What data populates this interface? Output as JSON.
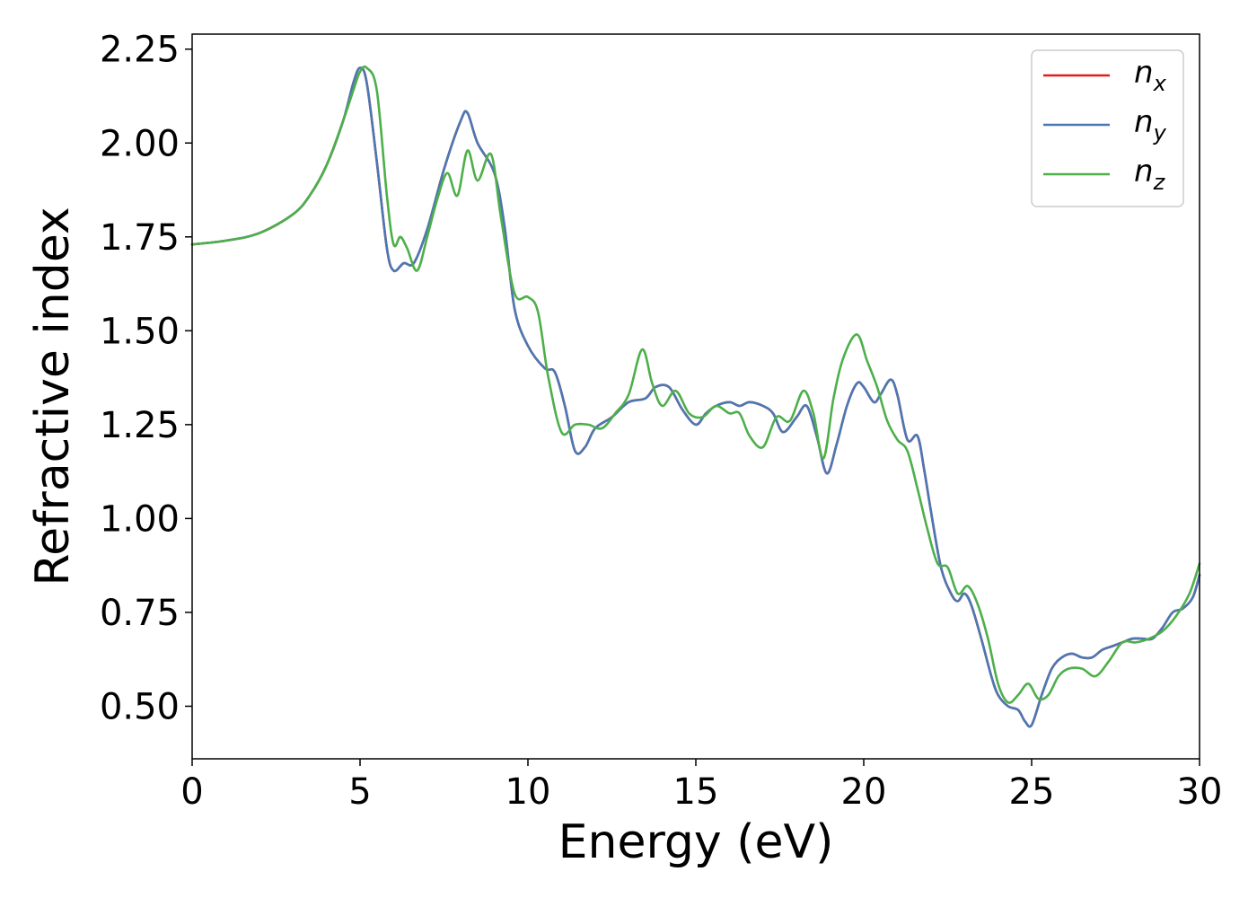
{
  "chart_data": {
    "type": "line",
    "xlabel": "Energy (eV)",
    "ylabel": "Refractive index",
    "xlim": [
      0,
      30
    ],
    "ylim": [
      0.36,
      2.29
    ],
    "xticks": [
      0,
      5,
      10,
      15,
      20,
      25,
      30
    ],
    "xtick_labels": [
      "0",
      "5",
      "10",
      "15",
      "20",
      "25",
      "30"
    ],
    "yticks": [
      0.5,
      0.75,
      1.0,
      1.25,
      1.5,
      1.75,
      2.0,
      2.25
    ],
    "ytick_labels": [
      "0.50",
      "0.75",
      "1.00",
      "1.25",
      "1.50",
      "1.75",
      "2.00",
      "2.25"
    ],
    "grid": false,
    "legend_position": "top-right",
    "series": [
      {
        "name": "n",
        "subscript": "x",
        "color": "#e41a1c",
        "x": [
          0,
          1,
          2,
          3,
          3.5,
          4,
          4.5,
          4.8,
          5.0,
          5.2,
          5.5,
          5.8,
          6.0,
          6.3,
          6.6,
          7.0,
          7.5,
          8.0,
          8.2,
          8.5,
          9.0,
          9.3,
          9.6,
          10.0,
          10.5,
          10.8,
          11.1,
          11.4,
          11.7,
          12.0,
          12.5,
          13.0,
          13.5,
          13.8,
          14.2,
          14.6,
          15.0,
          15.3,
          15.6,
          16.0,
          16.3,
          16.6,
          17.0,
          17.3,
          17.6,
          18.0,
          18.3,
          18.6,
          18.9,
          19.2,
          19.5,
          19.8,
          20.0,
          20.3,
          20.5,
          20.8,
          21.0,
          21.3,
          21.6,
          21.8,
          22.0,
          22.3,
          22.6,
          22.8,
          23.0,
          23.2,
          23.5,
          23.8,
          24.0,
          24.3,
          24.6,
          24.8,
          25.0,
          25.3,
          25.6,
          25.9,
          26.2,
          26.5,
          26.8,
          27.1,
          27.4,
          27.7,
          28.0,
          28.3,
          28.6,
          28.9,
          29.2,
          29.5,
          29.8,
          30
        ],
        "y": [
          1.73,
          1.74,
          1.76,
          1.81,
          1.86,
          1.94,
          2.06,
          2.16,
          2.2,
          2.16,
          1.95,
          1.72,
          1.66,
          1.68,
          1.68,
          1.77,
          1.93,
          2.06,
          2.08,
          2.0,
          1.92,
          1.78,
          1.56,
          1.46,
          1.4,
          1.39,
          1.3,
          1.18,
          1.19,
          1.24,
          1.27,
          1.31,
          1.32,
          1.35,
          1.35,
          1.29,
          1.25,
          1.28,
          1.3,
          1.31,
          1.3,
          1.31,
          1.3,
          1.28,
          1.23,
          1.27,
          1.3,
          1.22,
          1.12,
          1.2,
          1.3,
          1.36,
          1.35,
          1.31,
          1.33,
          1.37,
          1.33,
          1.21,
          1.22,
          1.13,
          1.02,
          0.87,
          0.8,
          0.78,
          0.8,
          0.77,
          0.68,
          0.58,
          0.53,
          0.5,
          0.49,
          0.46,
          0.45,
          0.53,
          0.6,
          0.63,
          0.64,
          0.63,
          0.63,
          0.65,
          0.66,
          0.67,
          0.68,
          0.68,
          0.68,
          0.71,
          0.75,
          0.76,
          0.79,
          0.85
        ]
      },
      {
        "name": "n",
        "subscript": "y",
        "color": "#4a78b3",
        "x": [
          0,
          1,
          2,
          3,
          3.5,
          4,
          4.5,
          4.8,
          5.0,
          5.2,
          5.5,
          5.8,
          6.0,
          6.3,
          6.6,
          7.0,
          7.5,
          8.0,
          8.2,
          8.5,
          9.0,
          9.3,
          9.6,
          10.0,
          10.5,
          10.8,
          11.1,
          11.4,
          11.7,
          12.0,
          12.5,
          13.0,
          13.5,
          13.8,
          14.2,
          14.6,
          15.0,
          15.3,
          15.6,
          16.0,
          16.3,
          16.6,
          17.0,
          17.3,
          17.6,
          18.0,
          18.3,
          18.6,
          18.9,
          19.2,
          19.5,
          19.8,
          20.0,
          20.3,
          20.5,
          20.8,
          21.0,
          21.3,
          21.6,
          21.8,
          22.0,
          22.3,
          22.6,
          22.8,
          23.0,
          23.2,
          23.5,
          23.8,
          24.0,
          24.3,
          24.6,
          24.8,
          25.0,
          25.3,
          25.6,
          25.9,
          26.2,
          26.5,
          26.8,
          27.1,
          27.4,
          27.7,
          28.0,
          28.3,
          28.6,
          28.9,
          29.2,
          29.5,
          29.8,
          30
        ],
        "y": [
          1.73,
          1.74,
          1.76,
          1.81,
          1.86,
          1.94,
          2.06,
          2.16,
          2.2,
          2.16,
          1.95,
          1.72,
          1.66,
          1.68,
          1.68,
          1.77,
          1.93,
          2.06,
          2.08,
          2.0,
          1.92,
          1.78,
          1.56,
          1.46,
          1.4,
          1.39,
          1.3,
          1.18,
          1.19,
          1.24,
          1.27,
          1.31,
          1.32,
          1.35,
          1.35,
          1.29,
          1.25,
          1.28,
          1.3,
          1.31,
          1.3,
          1.31,
          1.3,
          1.28,
          1.23,
          1.27,
          1.3,
          1.22,
          1.12,
          1.2,
          1.3,
          1.36,
          1.35,
          1.31,
          1.33,
          1.37,
          1.33,
          1.21,
          1.22,
          1.13,
          1.02,
          0.87,
          0.8,
          0.78,
          0.8,
          0.77,
          0.68,
          0.58,
          0.53,
          0.5,
          0.49,
          0.46,
          0.45,
          0.53,
          0.6,
          0.63,
          0.64,
          0.63,
          0.63,
          0.65,
          0.66,
          0.67,
          0.68,
          0.68,
          0.68,
          0.71,
          0.75,
          0.76,
          0.79,
          0.85
        ]
      },
      {
        "name": "n",
        "subscript": "z",
        "color": "#4daf4a",
        "x": [
          0,
          1,
          2,
          3,
          3.5,
          4,
          4.5,
          4.8,
          5.0,
          5.2,
          5.5,
          5.8,
          6.0,
          6.2,
          6.4,
          6.7,
          7.0,
          7.3,
          7.6,
          7.9,
          8.2,
          8.5,
          8.9,
          9.2,
          9.6,
          10.0,
          10.3,
          10.6,
          11.0,
          11.4,
          11.8,
          12.2,
          12.6,
          13.0,
          13.4,
          13.7,
          14.0,
          14.4,
          14.8,
          15.2,
          15.6,
          16.0,
          16.3,
          16.6,
          17.0,
          17.4,
          17.8,
          18.2,
          18.5,
          18.8,
          19.1,
          19.4,
          19.8,
          20.1,
          20.4,
          20.7,
          21.0,
          21.3,
          21.6,
          21.9,
          22.2,
          22.5,
          22.8,
          23.1,
          23.4,
          23.7,
          24.0,
          24.3,
          24.6,
          24.9,
          25.2,
          25.5,
          25.8,
          26.1,
          26.5,
          26.9,
          27.3,
          27.7,
          28.1,
          28.5,
          28.9,
          29.3,
          29.7,
          30
        ],
        "y": [
          1.73,
          1.74,
          1.76,
          1.81,
          1.86,
          1.94,
          2.06,
          2.14,
          2.19,
          2.2,
          2.14,
          1.86,
          1.73,
          1.75,
          1.72,
          1.66,
          1.75,
          1.85,
          1.92,
          1.86,
          1.98,
          1.9,
          1.97,
          1.8,
          1.6,
          1.59,
          1.55,
          1.38,
          1.23,
          1.25,
          1.25,
          1.24,
          1.28,
          1.33,
          1.45,
          1.36,
          1.3,
          1.34,
          1.28,
          1.27,
          1.3,
          1.28,
          1.28,
          1.22,
          1.19,
          1.27,
          1.26,
          1.34,
          1.28,
          1.16,
          1.32,
          1.43,
          1.49,
          1.42,
          1.35,
          1.26,
          1.21,
          1.18,
          1.08,
          0.97,
          0.88,
          0.87,
          0.8,
          0.82,
          0.77,
          0.68,
          0.56,
          0.51,
          0.53,
          0.56,
          0.52,
          0.53,
          0.58,
          0.6,
          0.6,
          0.58,
          0.62,
          0.67,
          0.67,
          0.68,
          0.7,
          0.74,
          0.8,
          0.88
        ]
      }
    ]
  }
}
